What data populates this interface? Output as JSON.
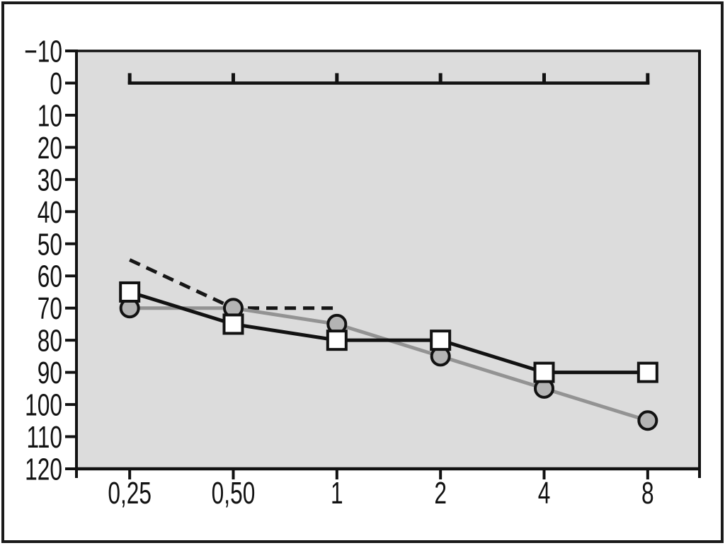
{
  "figure": {
    "background_color": "#ffffff",
    "frame_color": "#1a1a1a",
    "plot_background_color": "#dcdcdc"
  },
  "chart_data": {
    "type": "line",
    "title": "",
    "xlabel": "",
    "ylabel": "",
    "x_categories": [
      0.25,
      0.5,
      1,
      2,
      4,
      8
    ],
    "x_tick_labels": [
      "0,25",
      "0,50",
      "1",
      "2",
      "4",
      "8"
    ],
    "x_scale": "categorical-equal-spacing",
    "y_axis": {
      "min": -10,
      "max": 120,
      "step": 10,
      "inverted": true,
      "tick_labels": [
        "−10",
        "0",
        "10",
        "20",
        "30",
        "40",
        "50",
        "60",
        "70",
        "80",
        "90",
        "100",
        "110",
        "120"
      ]
    },
    "grid": "off",
    "legend": "none",
    "series": [
      {
        "name": "dashed-threshold-line",
        "line_style": "dashed",
        "line_color": "#161616",
        "marker": "none",
        "x": [
          0.25,
          0.5,
          1
        ],
        "values": [
          55,
          70,
          70
        ]
      },
      {
        "name": "gray-circle-series",
        "line_style": "solid",
        "line_color": "#939393",
        "marker": "circle",
        "marker_fill": "#b4b4b4",
        "marker_stroke": "#121212",
        "x": [
          0.25,
          0.5,
          1,
          2,
          4,
          8
        ],
        "values": [
          70,
          70,
          75,
          85,
          95,
          105
        ]
      },
      {
        "name": "black-square-series",
        "line_style": "solid",
        "line_color": "#121212",
        "marker": "square",
        "marker_fill": "#ffffff",
        "marker_stroke": "#121212",
        "x": [
          0.25,
          0.5,
          1,
          2,
          4,
          8
        ],
        "values": [
          65,
          75,
          80,
          80,
          90,
          90
        ]
      }
    ],
    "bracket": {
      "y_value": 0,
      "x_from": 0.25,
      "x_to": 8,
      "tick_positions": [
        0.25,
        0.5,
        1,
        2,
        4,
        8
      ],
      "tick_direction": "up",
      "color": "#121212"
    }
  }
}
